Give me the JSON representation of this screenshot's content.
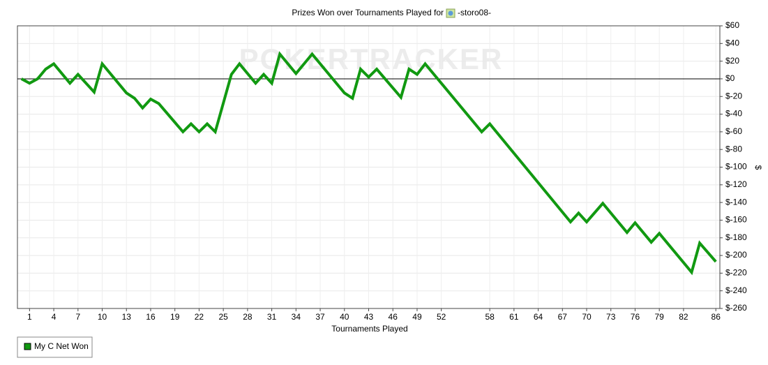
{
  "chart_data": {
    "type": "line",
    "title": "Prizes Won over Tournaments Played for",
    "player": "-storo08-",
    "watermark": "POKERTRACKER",
    "xlabel": "Tournaments Played",
    "ylabel": "$",
    "xlim": [
      -0.5,
      86.5
    ],
    "xticks": [
      1,
      4,
      7,
      10,
      13,
      16,
      19,
      22,
      25,
      28,
      31,
      34,
      37,
      40,
      43,
      46,
      49,
      52,
      58,
      61,
      64,
      67,
      70,
      73,
      76,
      79,
      82,
      86
    ],
    "ylim": [
      -260,
      60
    ],
    "yticks": [
      {
        "value": 60,
        "label": "$60"
      },
      {
        "value": 40,
        "label": "$40"
      },
      {
        "value": 20,
        "label": "$20"
      },
      {
        "value": 0,
        "label": "$0"
      },
      {
        "value": -20,
        "label": "$-20"
      },
      {
        "value": -40,
        "label": "$-40"
      },
      {
        "value": -60,
        "label": "$-60"
      },
      {
        "value": -80,
        "label": "$-80"
      },
      {
        "value": -100,
        "label": "$-100"
      },
      {
        "value": -120,
        "label": "$-120"
      },
      {
        "value": -140,
        "label": "$-140"
      },
      {
        "value": -160,
        "label": "$-160"
      },
      {
        "value": -180,
        "label": "$-180"
      },
      {
        "value": -200,
        "label": "$-200"
      },
      {
        "value": -220,
        "label": "$-220"
      },
      {
        "value": -240,
        "label": "$-240"
      },
      {
        "value": -260,
        "label": "$-260"
      }
    ],
    "grid": true,
    "legend": "bottom-left",
    "x": [
      0,
      1,
      2,
      3,
      4,
      6,
      7,
      9,
      10,
      13,
      14,
      15,
      16,
      17,
      20,
      21,
      22,
      23,
      24,
      26,
      27,
      29,
      30,
      31,
      32,
      34,
      36,
      40,
      41,
      42,
      43,
      44,
      47,
      48,
      49,
      50,
      57,
      58,
      68,
      69,
      70,
      72,
      75,
      76,
      78,
      79,
      83,
      84,
      86
    ],
    "series": [
      {
        "name": "My C Net Won",
        "color": "#119911",
        "values": [
          0,
          -5,
          0,
          11,
          17,
          -5,
          5,
          -15,
          17,
          -16,
          -22,
          -33,
          -23,
          -28,
          -60,
          -51,
          -60,
          -51,
          -60,
          5,
          17,
          -5,
          5,
          -5,
          28,
          6,
          28,
          -16,
          -22,
          11,
          2,
          11,
          -21,
          11,
          5,
          17,
          -60,
          -51,
          -162,
          -152,
          -162,
          -141,
          -174,
          -163,
          -185,
          -175,
          -219,
          -186,
          -207
        ]
      }
    ]
  }
}
